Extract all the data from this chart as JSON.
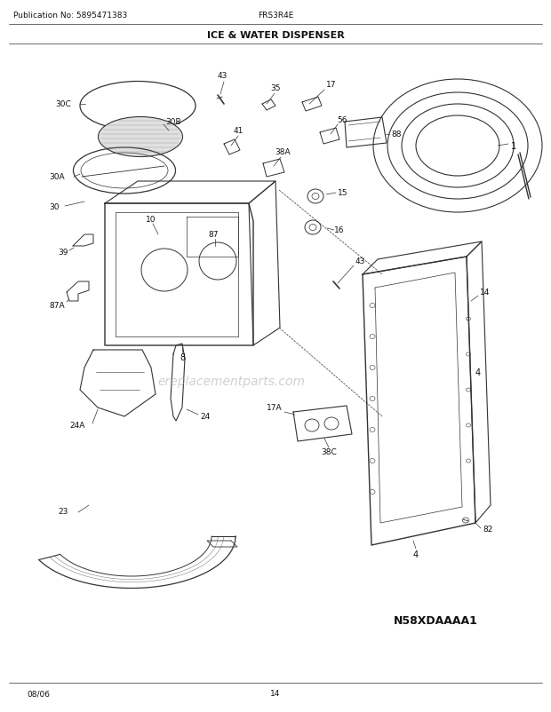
{
  "title": "ICE & WATER DISPENSER",
  "pub_no": "Publication No: 5895471383",
  "model": "FRS3R4E",
  "date": "08/06",
  "page": "14",
  "diagram_id": "N58XDAAAA1",
  "bg_color": "#ffffff",
  "lc": "#333333"
}
